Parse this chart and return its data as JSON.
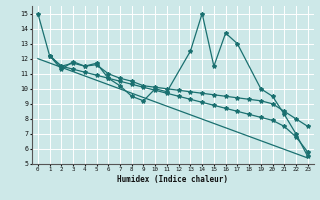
{
  "xlabel": "Humidex (Indice chaleur)",
  "background_color": "#cde8e8",
  "grid_color": "#ffffff",
  "line_color": "#1a7070",
  "xlim": [
    -0.5,
    23.5
  ],
  "ylim": [
    5,
    15.5
  ],
  "xticks": [
    0,
    1,
    2,
    3,
    4,
    5,
    6,
    7,
    8,
    9,
    10,
    11,
    12,
    13,
    14,
    15,
    16,
    17,
    18,
    19,
    20,
    21,
    22,
    23
  ],
  "yticks": [
    5,
    6,
    7,
    8,
    9,
    10,
    11,
    12,
    13,
    14,
    15
  ],
  "series1": {
    "x": [
      0,
      1,
      2,
      3,
      4,
      5,
      6,
      7,
      8,
      9,
      10,
      11,
      13,
      14,
      15,
      16,
      17,
      19,
      20,
      21,
      22,
      23
    ],
    "y": [
      15,
      12.2,
      11.3,
      11.8,
      11.5,
      11.7,
      10.7,
      10.2,
      9.5,
      9.2,
      10.0,
      9.8,
      12.5,
      15.0,
      11.5,
      13.7,
      13.0,
      10.0,
      9.5,
      8.3,
      7.0,
      5.5
    ]
  },
  "series2": {
    "x": [
      1,
      2,
      3,
      4,
      5,
      6,
      7,
      8,
      9,
      10,
      11,
      12,
      13,
      14,
      15,
      16,
      17,
      18,
      19,
      20,
      21,
      22,
      23
    ],
    "y": [
      12.2,
      11.5,
      11.7,
      11.5,
      11.6,
      11.0,
      10.7,
      10.5,
      10.2,
      10.1,
      10.0,
      9.9,
      9.8,
      9.7,
      9.6,
      9.5,
      9.4,
      9.3,
      9.2,
      9.0,
      8.5,
      8.0,
      7.5
    ]
  },
  "series3": {
    "x": [
      1,
      2,
      3,
      4,
      5,
      6,
      7,
      8,
      9,
      10,
      11,
      12,
      13,
      14,
      15,
      16,
      17,
      18,
      19,
      20,
      21,
      22,
      23
    ],
    "y": [
      12.2,
      11.5,
      11.3,
      11.1,
      10.9,
      10.7,
      10.5,
      10.3,
      10.1,
      9.9,
      9.7,
      9.5,
      9.3,
      9.1,
      8.9,
      8.7,
      8.5,
      8.3,
      8.1,
      7.9,
      7.5,
      6.8,
      5.8
    ]
  },
  "series4_x": [
    0,
    23
  ],
  "series4_y": [
    12.0,
    5.4
  ]
}
